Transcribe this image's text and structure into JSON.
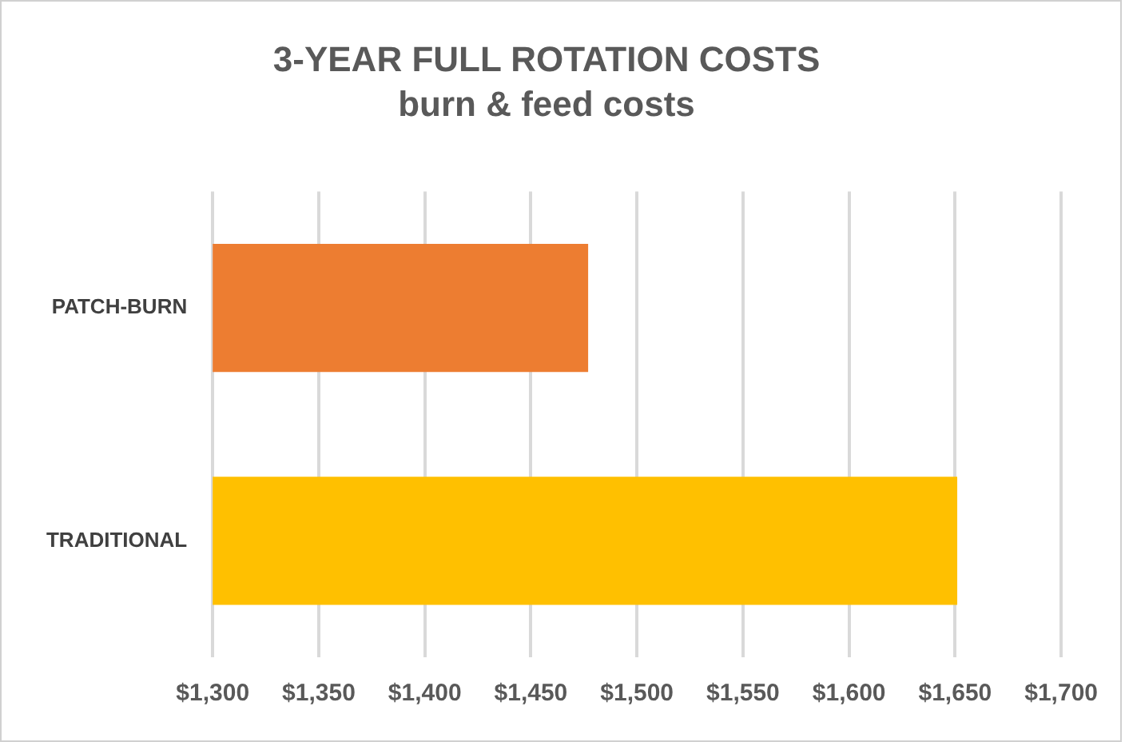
{
  "chart_data": {
    "type": "bar",
    "orientation": "horizontal",
    "title": "3-YEAR FULL ROTATION COSTS",
    "subtitle": "burn & feed costs",
    "categories": [
      "PATCH-BURN",
      "TRADITIONAL"
    ],
    "values": [
      1477,
      1651
    ],
    "colors": [
      "#ed7d31",
      "#ffc000"
    ],
    "xlim": [
      1300,
      1700
    ],
    "xticks": [
      {
        "value": 1300,
        "label": "$1,300"
      },
      {
        "value": 1350,
        "label": "$1,350"
      },
      {
        "value": 1400,
        "label": "$1,400"
      },
      {
        "value": 1450,
        "label": "$1,450"
      },
      {
        "value": 1500,
        "label": "$1,500"
      },
      {
        "value": 1550,
        "label": "$1,550"
      },
      {
        "value": 1600,
        "label": "$1,600"
      },
      {
        "value": 1650,
        "label": "$1,650"
      },
      {
        "value": 1700,
        "label": "$1,700"
      }
    ],
    "grid": "x",
    "legend": false
  }
}
